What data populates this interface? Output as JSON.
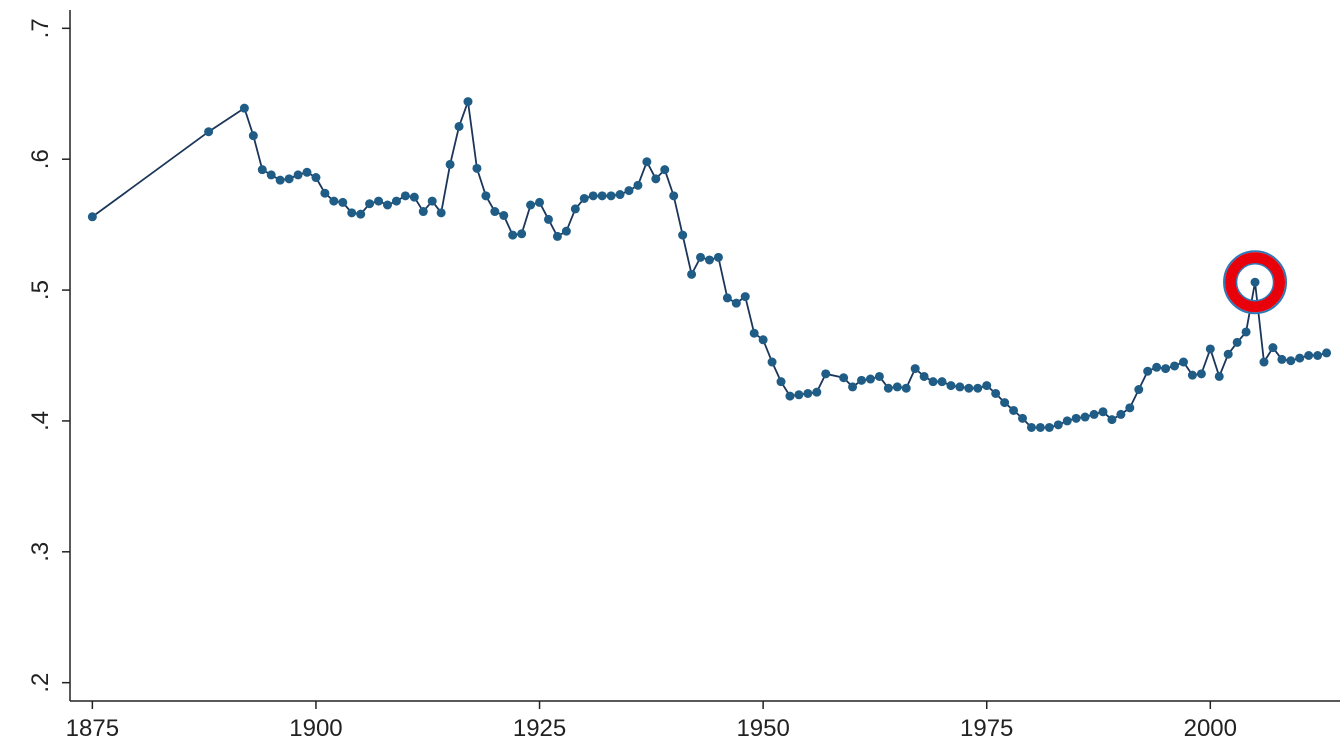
{
  "chart_data": {
    "type": "line",
    "x": [
      1875,
      1888,
      1892,
      1893,
      1894,
      1895,
      1896,
      1897,
      1898,
      1899,
      1900,
      1901,
      1902,
      1903,
      1904,
      1905,
      1906,
      1907,
      1908,
      1909,
      1910,
      1911,
      1912,
      1913,
      1914,
      1915,
      1916,
      1917,
      1918,
      1919,
      1920,
      1921,
      1922,
      1923,
      1924,
      1925,
      1926,
      1927,
      1928,
      1929,
      1930,
      1931,
      1932,
      1933,
      1934,
      1935,
      1936,
      1937,
      1938,
      1939,
      1940,
      1941,
      1942,
      1943,
      1944,
      1945,
      1946,
      1947,
      1948,
      1949,
      1950,
      1951,
      1952,
      1953,
      1954,
      1955,
      1956,
      1957,
      1959,
      1960,
      1961,
      1962,
      1963,
      1964,
      1965,
      1966,
      1967,
      1968,
      1969,
      1970,
      1971,
      1972,
      1973,
      1974,
      1975,
      1976,
      1977,
      1978,
      1979,
      1980,
      1981,
      1982,
      1983,
      1984,
      1985,
      1986,
      1987,
      1988,
      1989,
      1990,
      1991,
      1992,
      1993,
      1994,
      1995,
      1996,
      1997,
      1998,
      1999,
      2000,
      2001,
      2002,
      2003,
      2004,
      2005,
      2006,
      2007,
      2008,
      2009,
      2010,
      2011,
      2012,
      2013
    ],
    "values": [
      0.556,
      0.621,
      0.639,
      0.618,
      0.592,
      0.588,
      0.584,
      0.585,
      0.588,
      0.59,
      0.586,
      0.574,
      0.568,
      0.567,
      0.559,
      0.558,
      0.566,
      0.568,
      0.565,
      0.568,
      0.572,
      0.571,
      0.56,
      0.568,
      0.559,
      0.596,
      0.625,
      0.644,
      0.593,
      0.572,
      0.56,
      0.557,
      0.542,
      0.543,
      0.565,
      0.567,
      0.554,
      0.541,
      0.545,
      0.562,
      0.57,
      0.572,
      0.572,
      0.572,
      0.573,
      0.576,
      0.58,
      0.598,
      0.585,
      0.592,
      0.572,
      0.542,
      0.512,
      0.525,
      0.523,
      0.525,
      0.494,
      0.49,
      0.495,
      0.467,
      0.462,
      0.445,
      0.43,
      0.419,
      0.42,
      0.421,
      0.422,
      0.436,
      0.433,
      0.426,
      0.431,
      0.432,
      0.434,
      0.425,
      0.426,
      0.425,
      0.44,
      0.434,
      0.43,
      0.43,
      0.427,
      0.426,
      0.425,
      0.425,
      0.427,
      0.421,
      0.414,
      0.408,
      0.402,
      0.395,
      0.395,
      0.395,
      0.397,
      0.4,
      0.402,
      0.403,
      0.405,
      0.407,
      0.401,
      0.405,
      0.41,
      0.424,
      0.438,
      0.441,
      0.44,
      0.442,
      0.445,
      0.435,
      0.436,
      0.455,
      0.434,
      0.451,
      0.46,
      0.468,
      0.506,
      0.445,
      0.456,
      0.447,
      0.446,
      0.448,
      0.45,
      0.45,
      0.452
    ],
    "color": "#1f5d86",
    "line_color": "#1b365a",
    "highlight_index": 114,
    "highlight_color": "#e8000b",
    "xlim": [
      1872.5,
      2014.5
    ],
    "xticks": [
      1875,
      1900,
      1925,
      1950,
      1975,
      2000
    ],
    "ylim": [
      0.186,
      0.714
    ],
    "yticks": [
      {
        "value": 0.2,
        "label": ".2"
      },
      {
        "value": 0.3,
        "label": ".3"
      },
      {
        "value": 0.4,
        "label": ".4"
      },
      {
        "value": 0.5,
        "label": ".5"
      },
      {
        "value": 0.6,
        "label": ".6"
      },
      {
        "value": 0.7,
        "label": ".7"
      }
    ]
  }
}
